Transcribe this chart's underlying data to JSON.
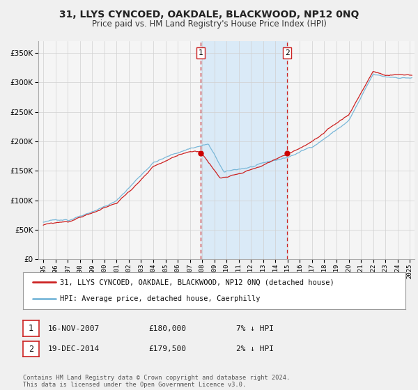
{
  "title": "31, LLYS CYNCOED, OAKDALE, BLACKWOOD, NP12 0NQ",
  "subtitle": "Price paid vs. HM Land Registry's House Price Index (HPI)",
  "legend_line1": "31, LLYS CYNCOED, OAKDALE, BLACKWOOD, NP12 0NQ (detached house)",
  "legend_line2": "HPI: Average price, detached house, Caerphilly",
  "sale1_date": "16-NOV-2007",
  "sale1_price": "£180,000",
  "sale1_hpi": "7% ↓ HPI",
  "sale2_date": "19-DEC-2014",
  "sale2_price": "£179,500",
  "sale2_hpi": "2% ↓ HPI",
  "footer": "Contains HM Land Registry data © Crown copyright and database right 2024.\nThis data is licensed under the Open Government Licence v3.0.",
  "hpi_color": "#7ab8d9",
  "price_paid_color": "#cc2222",
  "sale_marker_color": "#cc0000",
  "shaded_region_color": "#daeaf7",
  "vline_color": "#cc2222",
  "background_color": "#f0f0f0",
  "plot_bg_color": "#f5f5f5",
  "grid_color": "#d0d0d0",
  "ylim": [
    0,
    370000
  ],
  "yticks": [
    0,
    50000,
    100000,
    150000,
    200000,
    250000,
    300000,
    350000
  ],
  "sale1_x": 2007.88,
  "sale2_x": 2014.97,
  "sale1_price_val": 180000,
  "sale2_price_val": 179500
}
